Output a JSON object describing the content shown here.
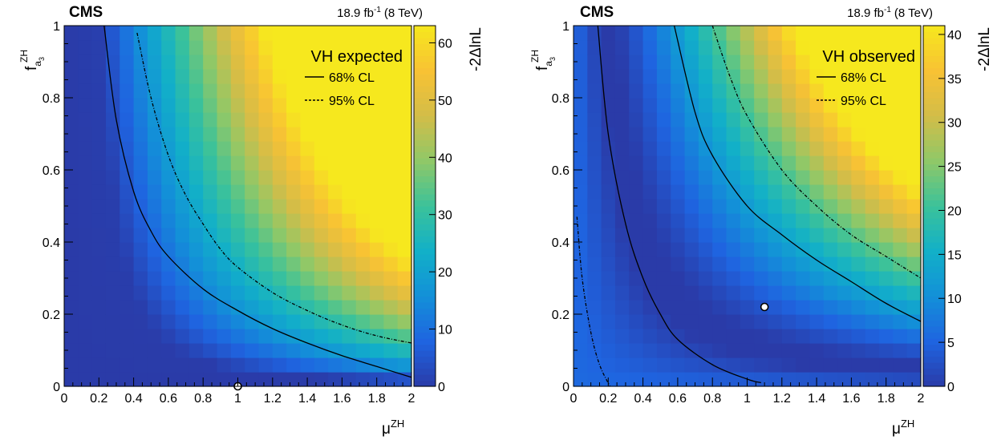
{
  "chart_data": [
    {
      "type": "heatmap",
      "experiment": "CMS",
      "lumi": "18.9 fb",
      "lumi_sup": "-1",
      "energy": "(8 TeV)",
      "legend_title": "VH expected",
      "legend_items": [
        {
          "label": "68% CL",
          "style": "solid"
        },
        {
          "label": "95% CL",
          "style": "dashed"
        }
      ],
      "xlabel": "μ",
      "xlabel_sup": "ZH",
      "ylabel": "f",
      "ylabel_sub": "a",
      "ylabel_subsub": "3",
      "ylabel_sup": "ZH",
      "zlabel": "-2ΔlnL",
      "xlim": [
        0,
        2
      ],
      "ylim": [
        0,
        1
      ],
      "zlim": [
        0,
        63
      ],
      "x_ticks": [
        "0",
        "0.2",
        "0.4",
        "0.6",
        "0.8",
        "1",
        "1.2",
        "1.4",
        "1.6",
        "1.8",
        "2"
      ],
      "y_ticks": [
        "0",
        "0.2",
        "0.4",
        "0.6",
        "0.8",
        "1"
      ],
      "z_ticks": [
        "0",
        "10",
        "20",
        "30",
        "40",
        "50",
        "60"
      ],
      "best_fit": {
        "x": 1.0,
        "y": 0.0
      },
      "contour_68": [
        [
          0.23,
          1.0
        ],
        [
          0.3,
          0.74
        ],
        [
          0.4,
          0.54
        ],
        [
          0.5,
          0.43
        ],
        [
          0.6,
          0.36
        ],
        [
          0.8,
          0.27
        ],
        [
          1.0,
          0.21
        ],
        [
          1.2,
          0.16
        ],
        [
          1.4,
          0.12
        ],
        [
          1.6,
          0.085
        ],
        [
          1.8,
          0.055
        ],
        [
          2.0,
          0.025
        ]
      ],
      "contour_95": [
        [
          0.42,
          0.98
        ],
        [
          0.5,
          0.8
        ],
        [
          0.6,
          0.64
        ],
        [
          0.7,
          0.53
        ],
        [
          0.8,
          0.45
        ],
        [
          0.9,
          0.38
        ],
        [
          1.0,
          0.33
        ],
        [
          1.2,
          0.26
        ],
        [
          1.4,
          0.21
        ],
        [
          1.6,
          0.17
        ],
        [
          1.8,
          0.14
        ],
        [
          2.0,
          0.12
        ]
      ],
      "colormap": [
        "#2a3ba8",
        "#1f64e0",
        "#1390d8",
        "#12b0c8",
        "#3bc29a",
        "#8fc868",
        "#d3bd48",
        "#f8c234",
        "#f6e81e"
      ]
    },
    {
      "type": "heatmap",
      "experiment": "CMS",
      "lumi": "18.9 fb",
      "lumi_sup": "-1",
      "energy": "(8 TeV)",
      "legend_title": "VH observed",
      "legend_items": [
        {
          "label": "68% CL",
          "style": "solid"
        },
        {
          "label": "95% CL",
          "style": "dashed"
        }
      ],
      "xlabel": "μ",
      "xlabel_sup": "ZH",
      "ylabel": "f",
      "ylabel_sub": "a",
      "ylabel_subsub": "3",
      "ylabel_sup": "ZH",
      "zlabel": "-2ΔlnL",
      "xlim": [
        0,
        2
      ],
      "ylim": [
        0,
        1
      ],
      "zlim": [
        0,
        41
      ],
      "x_ticks": [
        "0",
        "0.2",
        "0.4",
        "0.6",
        "0.8",
        "1",
        "1.2",
        "1.4",
        "1.6",
        "1.8",
        "2"
      ],
      "y_ticks": [
        "0",
        "0.2",
        "0.4",
        "0.6",
        "0.8",
        "1"
      ],
      "z_ticks": [
        "0",
        "5",
        "10",
        "15",
        "20",
        "25",
        "30",
        "35",
        "40"
      ],
      "best_fit": {
        "x": 1.1,
        "y": 0.22
      },
      "contour_68_inner": [
        [
          0.14,
          1.0
        ],
        [
          0.2,
          0.7
        ],
        [
          0.3,
          0.45
        ],
        [
          0.4,
          0.3
        ],
        [
          0.5,
          0.2
        ],
        [
          0.6,
          0.13
        ],
        [
          0.8,
          0.06
        ],
        [
          1.0,
          0.02
        ],
        [
          1.08,
          0.01
        ]
      ],
      "contour_68_outer": [
        [
          0.58,
          1.0
        ],
        [
          0.7,
          0.76
        ],
        [
          0.8,
          0.64
        ],
        [
          1.0,
          0.5
        ],
        [
          1.2,
          0.42
        ],
        [
          1.4,
          0.35
        ],
        [
          1.6,
          0.29
        ],
        [
          1.8,
          0.23
        ],
        [
          2.0,
          0.18
        ]
      ],
      "contour_95_inner": [
        [
          0.02,
          0.47
        ],
        [
          0.05,
          0.3
        ],
        [
          0.1,
          0.15
        ],
        [
          0.15,
          0.06
        ],
        [
          0.21,
          0.0
        ]
      ],
      "contour_95_outer": [
        [
          0.8,
          1.0
        ],
        [
          0.9,
          0.86
        ],
        [
          1.0,
          0.75
        ],
        [
          1.2,
          0.6
        ],
        [
          1.4,
          0.5
        ],
        [
          1.6,
          0.42
        ],
        [
          1.8,
          0.36
        ],
        [
          2.0,
          0.3
        ]
      ],
      "colormap": [
        "#2a3ba8",
        "#1f64e0",
        "#1390d8",
        "#12b0c8",
        "#3bc29a",
        "#8fc868",
        "#d3bd48",
        "#f8c234",
        "#f6e81e"
      ]
    }
  ]
}
